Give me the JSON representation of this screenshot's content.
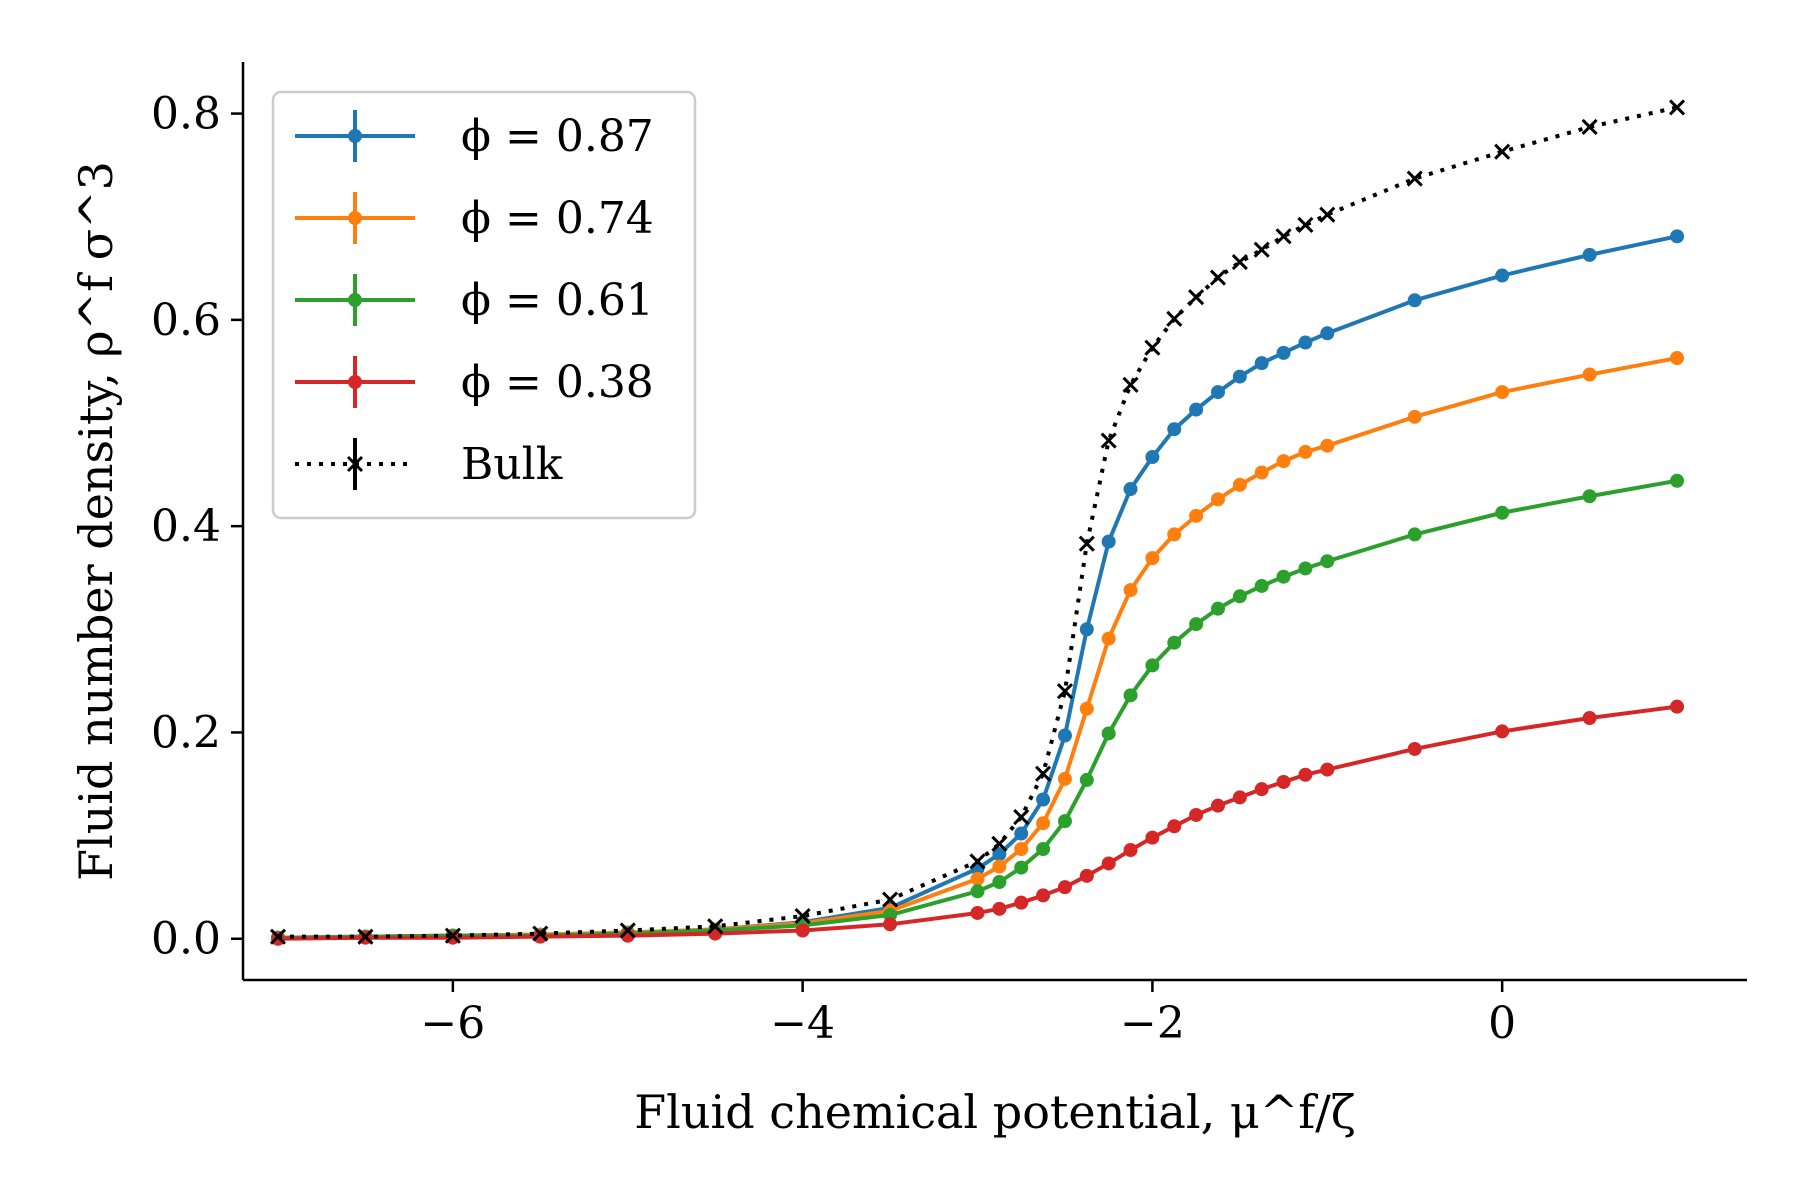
{
  "chart_data": {
    "type": "line",
    "title": "",
    "xlabel": "Fluid chemical potential, μ^f/ζ",
    "ylabel": "Fluid number density, ρ^f σ^3",
    "xlim": [
      -7.2,
      1.4
    ],
    "ylim": [
      -0.04,
      0.85
    ],
    "xticks": [
      -6,
      -4,
      -2,
      0
    ],
    "xtick_labels": [
      "−6",
      "−4",
      "−2",
      "0"
    ],
    "yticks": [
      0.0,
      0.2,
      0.4,
      0.6,
      0.8
    ],
    "ytick_labels": [
      "0.0",
      "0.2",
      "0.4",
      "0.6",
      "0.8"
    ],
    "grid": false,
    "legend_position": "top-left",
    "x": [
      -7,
      -6.5,
      -6,
      -5.5,
      -5,
      -4.5,
      -4,
      -3.5,
      -3,
      -2.875,
      -2.75,
      -2.625,
      -2.5,
      -2.375,
      -2.25,
      -2.125,
      -2,
      -1.875,
      -1.75,
      -1.625,
      -1.5,
      -1.375,
      -1.25,
      -1.125,
      -1,
      -0.5,
      0,
      0.5,
      1
    ],
    "series": [
      {
        "name": "ϕ = 0.87",
        "color": "#1f77b4",
        "style": "solid",
        "marker": "dot",
        "values": [
          0.001,
          0.002,
          0.003,
          0.004,
          0.006,
          0.009,
          0.016,
          0.03,
          0.068,
          0.082,
          0.102,
          0.135,
          0.197,
          0.3,
          0.385,
          0.436,
          0.467,
          0.494,
          0.513,
          0.53,
          0.545,
          0.558,
          0.568,
          0.578,
          0.587,
          0.619,
          0.643,
          0.663,
          0.681
        ]
      },
      {
        "name": "ϕ = 0.74",
        "color": "#ff7f0e",
        "style": "solid",
        "marker": "dot",
        "values": [
          0.001,
          0.002,
          0.003,
          0.004,
          0.006,
          0.009,
          0.015,
          0.027,
          0.058,
          0.07,
          0.087,
          0.112,
          0.155,
          0.223,
          0.291,
          0.338,
          0.369,
          0.392,
          0.41,
          0.426,
          0.44,
          0.452,
          0.463,
          0.472,
          0.478,
          0.506,
          0.53,
          0.547,
          0.563
        ]
      },
      {
        "name": "ϕ = 0.61",
        "color": "#2ca02c",
        "style": "solid",
        "marker": "dot",
        "values": [
          0.001,
          0.002,
          0.003,
          0.003,
          0.005,
          0.008,
          0.013,
          0.023,
          0.046,
          0.055,
          0.069,
          0.087,
          0.114,
          0.154,
          0.199,
          0.236,
          0.265,
          0.287,
          0.305,
          0.32,
          0.332,
          0.342,
          0.351,
          0.359,
          0.366,
          0.392,
          0.413,
          0.429,
          0.444
        ]
      },
      {
        "name": "ϕ = 0.38",
        "color": "#d62728",
        "style": "solid",
        "marker": "dot",
        "values": [
          0.0,
          0.001,
          0.001,
          0.002,
          0.003,
          0.005,
          0.008,
          0.014,
          0.025,
          0.029,
          0.035,
          0.042,
          0.05,
          0.061,
          0.073,
          0.086,
          0.098,
          0.109,
          0.12,
          0.129,
          0.137,
          0.145,
          0.152,
          0.159,
          0.164,
          0.184,
          0.201,
          0.214,
          0.225
        ]
      },
      {
        "name": "Bulk",
        "color": "#000000",
        "style": "dotted",
        "marker": "x",
        "values": [
          0.002,
          0.002,
          0.003,
          0.005,
          0.008,
          0.012,
          0.022,
          0.038,
          0.075,
          0.092,
          0.118,
          0.16,
          0.24,
          0.383,
          0.483,
          0.537,
          0.573,
          0.601,
          0.622,
          0.641,
          0.656,
          0.668,
          0.681,
          0.692,
          0.702,
          0.737,
          0.763,
          0.787,
          0.806
        ]
      }
    ]
  }
}
